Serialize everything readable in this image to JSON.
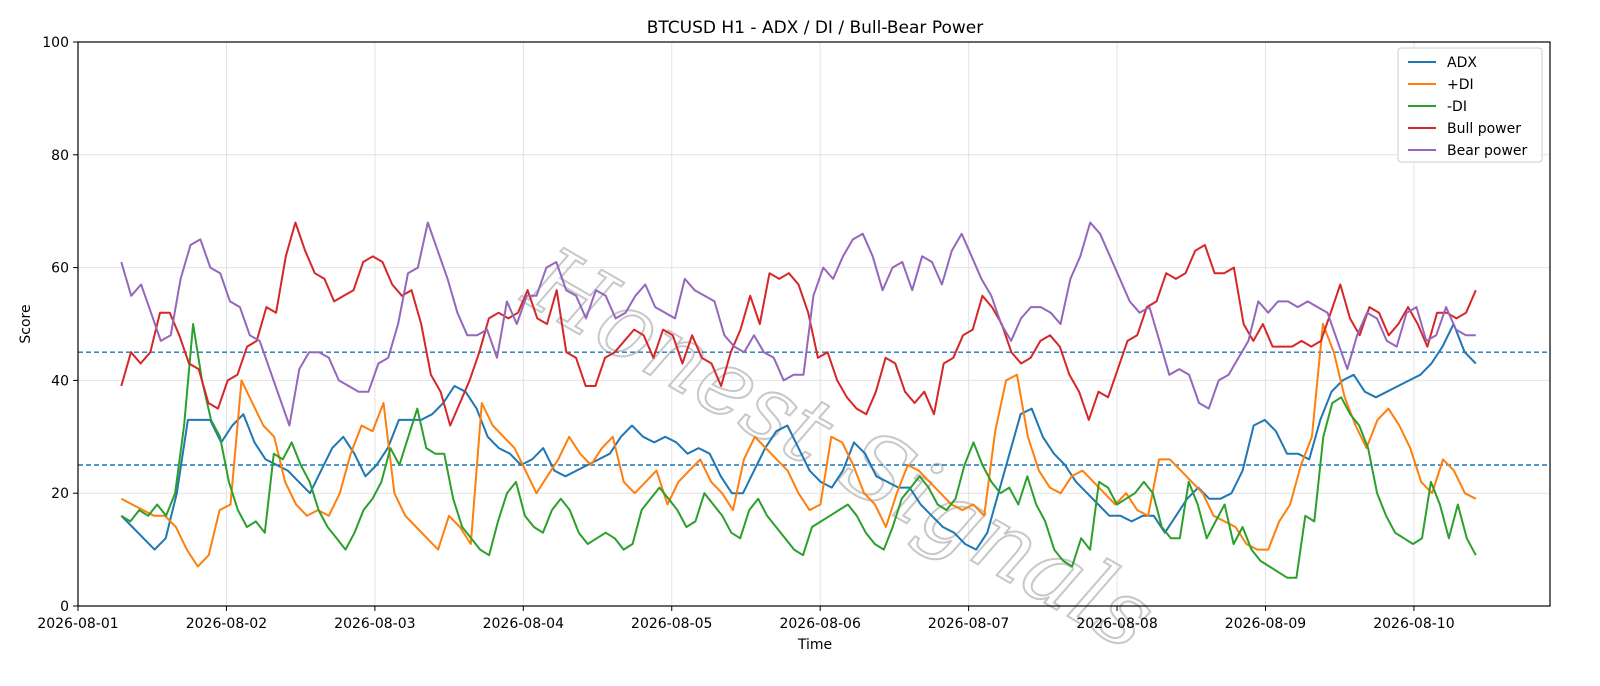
{
  "chart_data": {
    "type": "line",
    "title": "BTCUSD H1 - ADX / DI / Bull-Bear Power",
    "xlabel": "Time",
    "ylabel": "Score",
    "ylim": [
      0,
      100
    ],
    "yticks": [
      0,
      20,
      40,
      60,
      80,
      100
    ],
    "xlim": [
      "2026-08-01T00:00",
      "2026-08-10T22:00"
    ],
    "xticks": [
      "2026-08-01",
      "2026-08-02",
      "2026-08-03",
      "2026-08-04",
      "2026-08-05",
      "2026-08-06",
      "2026-08-07",
      "2026-08-08",
      "2026-08-09",
      "2026-08-10"
    ],
    "grid": true,
    "legend_position": "top-right",
    "reference_lines": [
      45,
      25
    ],
    "x_start": "2026-08-01T07:00",
    "x_step_hours": 2,
    "watermark": "Honest Signals",
    "series": [
      {
        "name": "ADX",
        "color": "#1f77b4",
        "values": [
          16,
          14,
          12,
          10,
          12,
          20,
          33,
          33,
          33,
          29,
          32,
          34,
          29,
          26,
          25,
          24,
          22,
          20,
          24,
          28,
          30,
          27,
          23,
          25,
          28,
          33,
          33,
          33,
          34,
          36,
          39,
          38,
          35,
          30,
          28,
          27,
          25,
          26,
          28,
          24,
          23,
          24,
          25,
          26,
          27,
          30,
          32,
          30,
          29,
          30,
          29,
          27,
          28,
          27,
          23,
          20,
          20,
          24,
          28,
          31,
          32,
          28,
          24,
          22,
          21,
          24,
          29,
          27,
          23,
          22,
          21,
          21,
          18,
          16,
          14,
          13,
          11,
          10,
          13,
          20,
          27,
          34,
          35,
          30,
          27,
          25,
          22,
          20,
          18,
          16,
          16,
          15,
          16,
          16,
          13,
          16,
          19,
          21,
          19,
          19,
          20,
          24,
          32,
          33,
          31,
          27,
          27,
          26,
          33,
          38,
          40,
          41,
          38,
          37,
          38,
          39,
          40,
          41,
          43,
          46,
          50,
          45,
          43
        ]
      },
      {
        "name": "+DI",
        "color": "#ff7f0e",
        "values": [
          19,
          18,
          17,
          16,
          16,
          14,
          10,
          7,
          9,
          17,
          18,
          40,
          36,
          32,
          30,
          22,
          18,
          16,
          17,
          16,
          20,
          27,
          32,
          31,
          36,
          20,
          16,
          14,
          12,
          10,
          16,
          14,
          11,
          36,
          32,
          30,
          28,
          24,
          20,
          23,
          26,
          30,
          27,
          25,
          28,
          30,
          22,
          20,
          22,
          24,
          18,
          22,
          24,
          26,
          22,
          20,
          17,
          26,
          30,
          28,
          26,
          24,
          20,
          17,
          18,
          30,
          29,
          25,
          20,
          18,
          14,
          20,
          25,
          24,
          22,
          20,
          18,
          17,
          18,
          16,
          31,
          40,
          41,
          30,
          24,
          21,
          20,
          23,
          24,
          22,
          20,
          18,
          20,
          17,
          16,
          26,
          26,
          24,
          22,
          20,
          16,
          15,
          14,
          11,
          10,
          10,
          15,
          18,
          25,
          30,
          50,
          45,
          37,
          32,
          28,
          33,
          35,
          32,
          28,
          22,
          20,
          26,
          24,
          20,
          19
        ]
      },
      {
        "name": "-DI",
        "color": "#2ca02c",
        "values": [
          16,
          15,
          17,
          16,
          18,
          16,
          20,
          32,
          50,
          40,
          33,
          30,
          22,
          17,
          14,
          15,
          13,
          27,
          26,
          29,
          25,
          22,
          17,
          14,
          12,
          10,
          13,
          17,
          19,
          22,
          28,
          25,
          30,
          35,
          28,
          27,
          27,
          19,
          14,
          12,
          10,
          9,
          15,
          20,
          22,
          16,
          14,
          13,
          17,
          19,
          17,
          13,
          11,
          12,
          13,
          12,
          10,
          11,
          17,
          19,
          21,
          19,
          17,
          14,
          15,
          20,
          18,
          16,
          13,
          12,
          17,
          19,
          16,
          14,
          12,
          10,
          9,
          14,
          15,
          16,
          17,
          18,
          16,
          13,
          11,
          10,
          14,
          19,
          21,
          23,
          21,
          18,
          17,
          19,
          25,
          29,
          25,
          22,
          20,
          21,
          18,
          23,
          18,
          15,
          10,
          8,
          7,
          12,
          10,
          22,
          21,
          18,
          19,
          20,
          22,
          20,
          14,
          12,
          12,
          22,
          18,
          12,
          15,
          18,
          11,
          14,
          10,
          8,
          7,
          6,
          5,
          5,
          16,
          15,
          30,
          36,
          37,
          34,
          32,
          28,
          20,
          16,
          13,
          12,
          11,
          12,
          22,
          18,
          12,
          18,
          12,
          9
        ]
      },
      {
        "name": "Bull power",
        "color": "#d62728",
        "values": [
          39,
          45,
          43,
          45,
          52,
          52,
          48,
          43,
          42,
          36,
          35,
          40,
          41,
          46,
          47,
          53,
          52,
          62,
          68,
          63,
          59,
          58,
          54,
          55,
          56,
          61,
          62,
          61,
          57,
          55,
          56,
          50,
          41,
          38,
          32,
          36,
          40,
          45,
          51,
          52,
          51,
          52,
          56,
          51,
          50,
          56,
          45,
          44,
          39,
          39,
          44,
          45,
          47,
          49,
          48,
          44,
          49,
          48,
          43,
          48,
          44,
          43,
          39,
          45,
          49,
          55,
          50,
          59,
          58,
          59,
          57,
          52,
          44,
          45,
          40,
          37,
          35,
          34,
          38,
          44,
          43,
          38,
          36,
          38,
          34,
          43,
          44,
          48,
          49,
          55,
          53,
          50,
          45,
          43,
          44,
          47,
          48,
          46,
          41,
          38,
          33,
          38,
          37,
          42,
          47,
          48,
          53,
          54,
          59,
          58,
          59,
          63,
          64,
          59,
          59,
          60,
          50,
          47,
          50,
          46,
          46,
          46,
          47,
          46,
          47,
          52,
          57,
          51,
          48,
          53,
          52,
          48,
          50,
          53,
          50,
          46,
          52,
          52,
          51,
          52,
          56
        ]
      },
      {
        "name": "Bear power",
        "color": "#9467bd",
        "values": [
          61,
          55,
          57,
          52,
          47,
          48,
          58,
          64,
          65,
          60,
          59,
          54,
          53,
          48,
          47,
          42,
          37,
          32,
          42,
          45,
          45,
          44,
          40,
          39,
          38,
          38,
          43,
          44,
          50,
          59,
          60,
          68,
          63,
          58,
          52,
          48,
          48,
          49,
          44,
          54,
          50,
          55,
          55,
          60,
          61,
          56,
          55,
          51,
          56,
          55,
          51,
          52,
          55,
          57,
          53,
          52,
          51,
          58,
          56,
          55,
          54,
          48,
          46,
          45,
          48,
          45,
          44,
          40,
          41,
          41,
          55,
          60,
          58,
          62,
          65,
          66,
          62,
          56,
          60,
          61,
          56,
          62,
          61,
          57,
          63,
          66,
          62,
          58,
          55,
          50,
          47,
          51,
          53,
          53,
          52,
          50,
          58,
          62,
          68,
          66,
          62,
          58,
          54,
          52,
          53,
          47,
          41,
          42,
          41,
          36,
          35,
          40,
          41,
          44,
          47,
          54,
          52,
          54,
          54,
          53,
          54,
          53,
          52,
          47,
          42,
          48,
          52,
          51,
          47,
          46,
          52,
          53,
          47,
          48,
          53,
          49,
          48,
          48
        ]
      }
    ]
  }
}
